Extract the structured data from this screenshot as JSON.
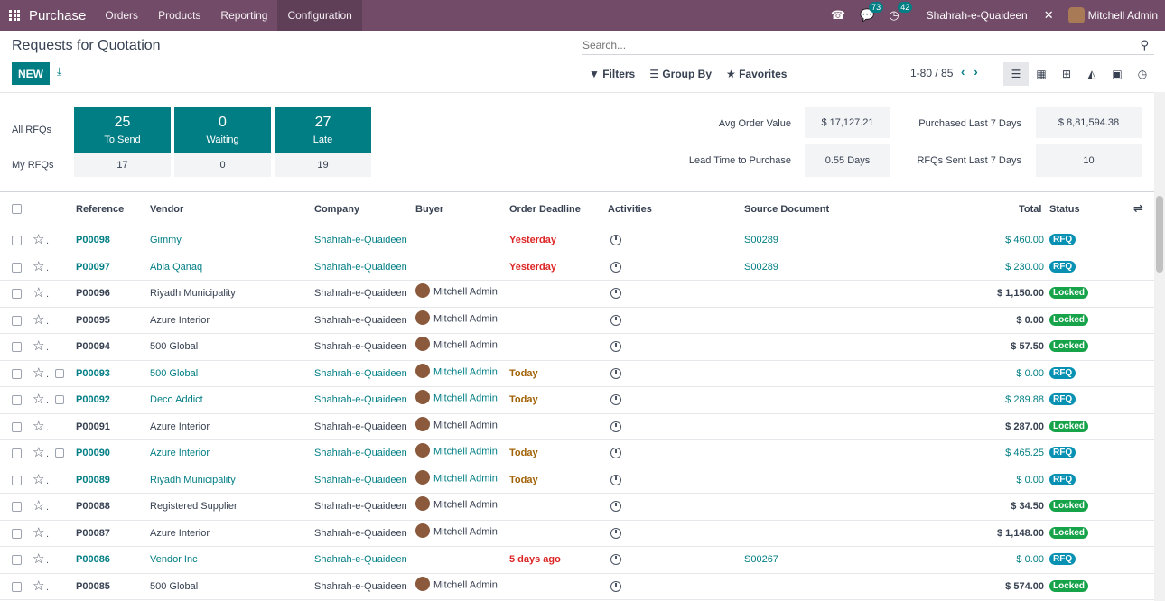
{
  "navbar": {
    "app_name": "Purchase",
    "menus": [
      "Orders",
      "Products",
      "Reporting",
      "Configuration"
    ],
    "messages_count": "73",
    "activities_count": "42",
    "company": "Shahrah-e-Quaideen",
    "user": "Mitchell Admin"
  },
  "control": {
    "title": "Requests for Quotation",
    "new_label": "NEW",
    "search_placeholder": "Search...",
    "filters_label": "Filters",
    "groupby_label": "Group By",
    "favorites_label": "Favorites",
    "pager": "1-80 / 85"
  },
  "dashboard": {
    "all_label": "All RFQs",
    "my_label": "My RFQs",
    "cards": [
      {
        "num": "25",
        "label": "To Send",
        "my": "17"
      },
      {
        "num": "0",
        "label": "Waiting",
        "my": "0"
      },
      {
        "num": "27",
        "label": "Late",
        "my": "19"
      }
    ],
    "kpis": [
      {
        "label": "Avg Order Value",
        "value": "$ 17,127.21"
      },
      {
        "label": "Purchased Last 7 Days",
        "value": "$ 8,81,594.38"
      },
      {
        "label": "Lead Time to Purchase",
        "value": "0.55 Days"
      },
      {
        "label": "RFQs Sent Last 7 Days",
        "value": "10"
      }
    ]
  },
  "table": {
    "headers": {
      "reference": "Reference",
      "vendor": "Vendor",
      "company": "Company",
      "buyer": "Buyer",
      "deadline": "Order Deadline",
      "activities": "Activities",
      "source": "Source Document",
      "total": "Total",
      "status": "Status"
    },
    "rows": [
      {
        "ref": "P00098",
        "vendor": "Gimmy",
        "company": "Shahrah-e-Quaideen",
        "buyer": "",
        "deadline": "Yesterday",
        "source": "S00289",
        "total": "$ 460.00",
        "status": "RFQ"
      },
      {
        "ref": "P00097",
        "vendor": "Abla Qanaq",
        "company": "Shahrah-e-Quaideen",
        "buyer": "",
        "deadline": "Yesterday",
        "source": "S00289",
        "total": "$ 230.00",
        "status": "RFQ"
      },
      {
        "ref": "P00096",
        "vendor": "Riyadh Municipality",
        "company": "Shahrah-e-Quaideen",
        "buyer": "Mitchell Admin",
        "deadline": "",
        "source": "",
        "total": "$ 1,150.00",
        "status": "Locked"
      },
      {
        "ref": "P00095",
        "vendor": "Azure Interior",
        "company": "Shahrah-e-Quaideen",
        "buyer": "Mitchell Admin",
        "deadline": "",
        "source": "",
        "total": "$ 0.00",
        "status": "Locked"
      },
      {
        "ref": "P00094",
        "vendor": "500 Global",
        "company": "Shahrah-e-Quaideen",
        "buyer": "Mitchell Admin",
        "deadline": "",
        "source": "",
        "total": "$ 57.50",
        "status": "Locked"
      },
      {
        "ref": "P00093",
        "vendor": "500 Global",
        "company": "Shahrah-e-Quaideen",
        "buyer": "Mitchell Admin",
        "deadline": "Today",
        "source": "",
        "total": "$ 0.00",
        "status": "RFQ"
      },
      {
        "ref": "P00092",
        "vendor": "Deco Addict",
        "company": "Shahrah-e-Quaideen",
        "buyer": "Mitchell Admin",
        "deadline": "Today",
        "source": "",
        "total": "$ 289.88",
        "status": "RFQ"
      },
      {
        "ref": "P00091",
        "vendor": "Azure Interior",
        "company": "Shahrah-e-Quaideen",
        "buyer": "Mitchell Admin",
        "deadline": "",
        "source": "",
        "total": "$ 287.00",
        "status": "Locked"
      },
      {
        "ref": "P00090",
        "vendor": "Azure Interior",
        "company": "Shahrah-e-Quaideen",
        "buyer": "Mitchell Admin",
        "deadline": "Today",
        "source": "",
        "total": "$ 465.25",
        "status": "RFQ"
      },
      {
        "ref": "P00089",
        "vendor": "Riyadh Municipality",
        "company": "Shahrah-e-Quaideen",
        "buyer": "Mitchell Admin",
        "deadline": "Today",
        "source": "",
        "total": "$ 0.00",
        "status": "RFQ"
      },
      {
        "ref": "P00088",
        "vendor": "Registered Supplier",
        "company": "Shahrah-e-Quaideen",
        "buyer": "Mitchell Admin",
        "deadline": "",
        "source": "",
        "total": "$ 34.50",
        "status": "Locked"
      },
      {
        "ref": "P00087",
        "vendor": "Azure Interior",
        "company": "Shahrah-e-Quaideen",
        "buyer": "Mitchell Admin",
        "deadline": "",
        "source": "",
        "total": "$ 1,148.00",
        "status": "Locked"
      },
      {
        "ref": "P00086",
        "vendor": "Vendor Inc",
        "company": "Shahrah-e-Quaideen",
        "buyer": "",
        "deadline": "5 days ago",
        "source": "S00267",
        "total": "$ 0.00",
        "status": "RFQ"
      },
      {
        "ref": "P00085",
        "vendor": "500 Global",
        "company": "Shahrah-e-Quaideen",
        "buyer": "Mitchell Admin",
        "deadline": "",
        "source": "",
        "total": "$ 574.00",
        "status": "Locked"
      }
    ]
  },
  "colors": {
    "brand": "#714b67",
    "accent": "#017e84",
    "rfq": "#0891b2",
    "locked": "#16a34a",
    "late": "#dc2626",
    "today": "#a16207"
  }
}
